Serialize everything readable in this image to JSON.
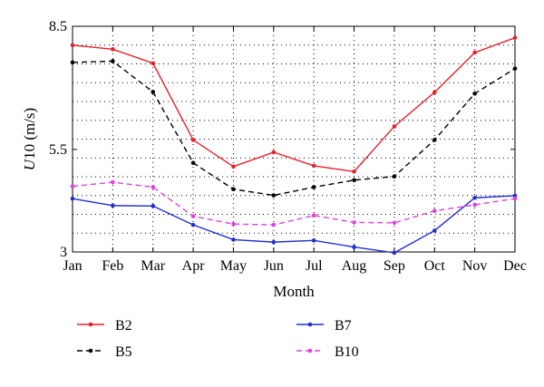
{
  "chart_data": {
    "type": "line",
    "categories": [
      "Jan",
      "Feb",
      "Mar",
      "Apr",
      "May",
      "Jun",
      "Jul",
      "Aug",
      "Sep",
      "Oct",
      "Nov",
      "Dec"
    ],
    "series": [
      {
        "name": "B2",
        "color": "#e8202a",
        "dash": "solid",
        "marker": "dot",
        "values": [
          8.04,
          7.94,
          7.6,
          5.73,
          5.08,
          5.43,
          5.1,
          4.96,
          6.06,
          6.89,
          7.86,
          8.22
        ]
      },
      {
        "name": "B5",
        "color": "#000000",
        "dash": "dashed",
        "marker": "dot",
        "values": [
          7.62,
          7.65,
          6.9,
          5.17,
          4.53,
          4.38,
          4.58,
          4.75,
          4.84,
          5.73,
          6.86,
          7.47
        ]
      },
      {
        "name": "B7",
        "color": "#1f2fd0",
        "dash": "solid",
        "marker": "dot",
        "values": [
          4.3,
          4.13,
          4.12,
          3.66,
          3.3,
          3.24,
          3.28,
          3.12,
          2.98,
          3.52,
          4.32,
          4.37
        ]
      },
      {
        "name": "B10",
        "color": "#e040e0",
        "dash": "dashed",
        "marker": "dot",
        "values": [
          4.6,
          4.7,
          4.58,
          3.87,
          3.68,
          3.66,
          3.89,
          3.72,
          3.71,
          4.0,
          4.15,
          4.3
        ]
      }
    ],
    "xlabel": "Month",
    "ylabel": "U10 (m/s)",
    "ylabel_italic_part": "U",
    "ylabel_rest": "10 (m/s)",
    "ylim": [
      3,
      8.5
    ],
    "yticks": [
      3,
      5.5,
      8.5
    ],
    "ytick_labels": [
      "3",
      "5.5",
      "8.5"
    ],
    "grid": true,
    "grid_style": "dotted",
    "legend_placement": "bottom"
  }
}
